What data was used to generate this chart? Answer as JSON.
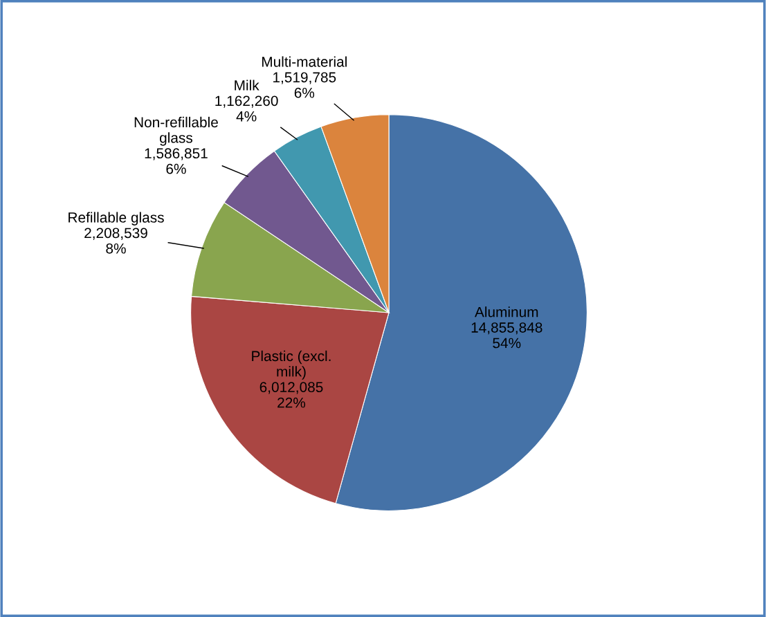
{
  "chart_data": {
    "type": "pie",
    "categories": [
      "Aluminum",
      "Plastic (excl.\nmilk)",
      "Refillable glass",
      "Non-refillable\nglass",
      "Milk",
      "Multi-material"
    ],
    "values": [
      14855848,
      6012085,
      2208539,
      1586851,
      1162260,
      1519785
    ],
    "colors": [
      "#4572a7",
      "#aa4643",
      "#89a54e",
      "#71588f",
      "#4198af",
      "#db843d"
    ],
    "value_labels": [
      "14,855,848\n54%",
      "6,012,085\n22%",
      "2,208,539\n8%",
      "1,586,851\n6%",
      "1,162,260\n4%",
      "1,519,785\n6%"
    ]
  }
}
